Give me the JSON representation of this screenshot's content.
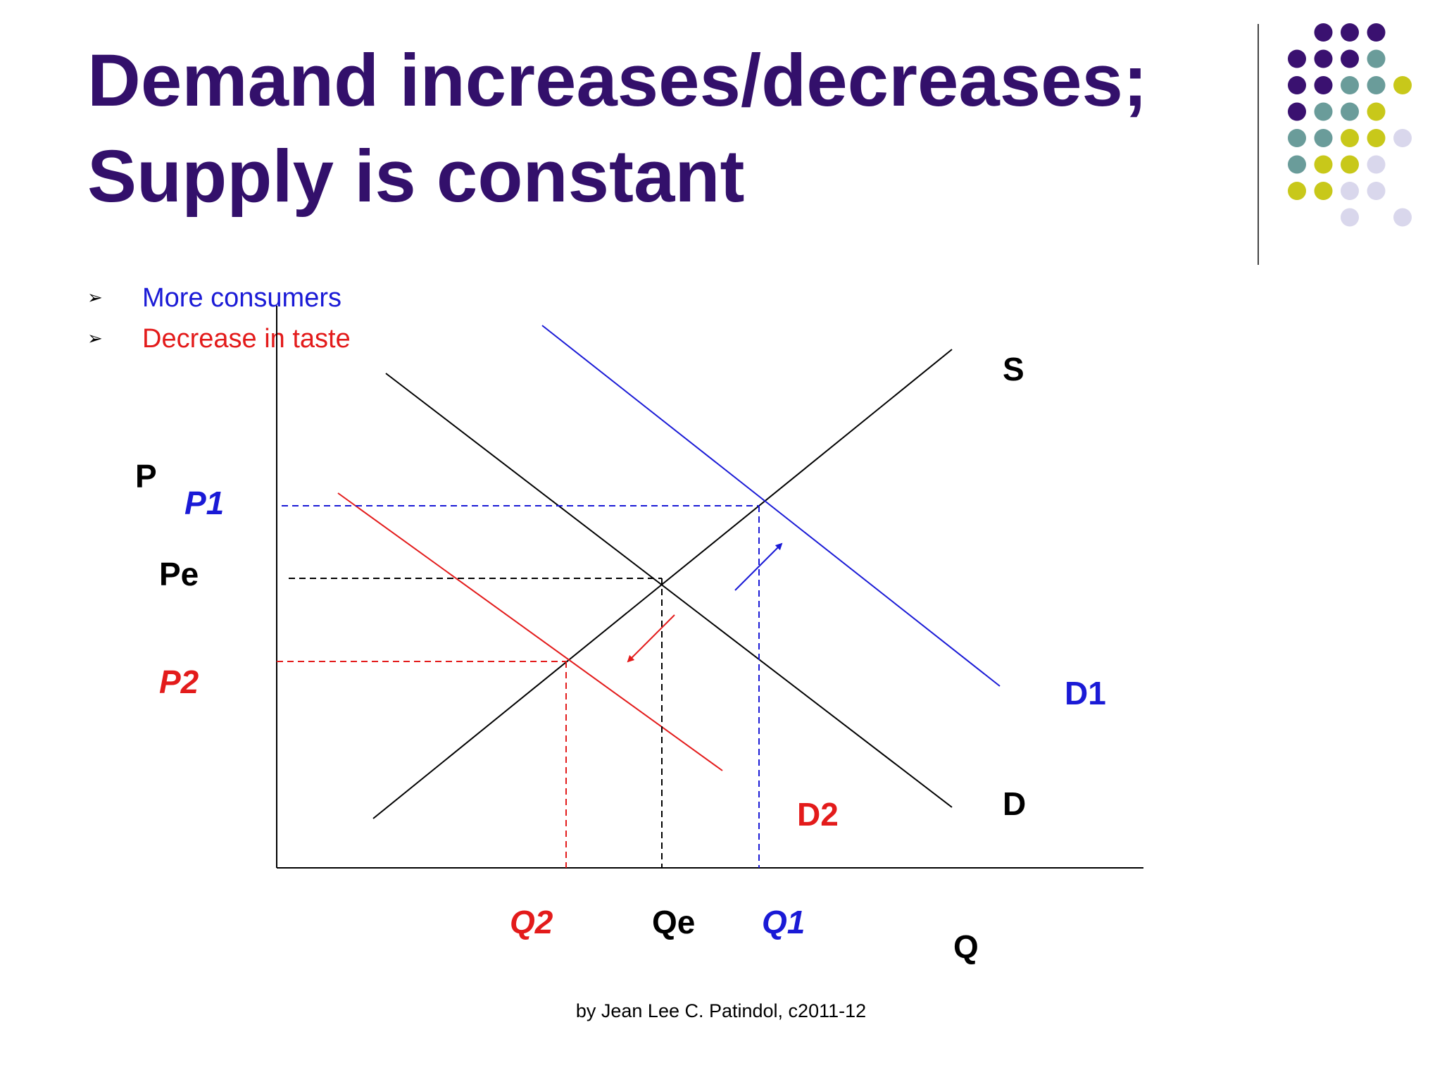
{
  "slide": {
    "title_line1": "Demand increases/decreases;",
    "title_line2": "Supply is constant",
    "bullets": [
      {
        "text": "More consumers",
        "color": "#1a1ad6"
      },
      {
        "text": "Decrease in taste",
        "color": "#e31b1b"
      }
    ],
    "bullet_marker": "➢",
    "footer": "by Jean Lee C. Patindol, c2011-12"
  },
  "colors": {
    "title": "#33106b",
    "blue": "#1a1ad6",
    "red": "#e31b1b",
    "black": "#000000",
    "dot_purple": "#3a1170",
    "dot_teal": "#6a9c9a",
    "dot_olive": "#c8c81a",
    "dot_lavender": "#d9d7ec"
  },
  "diagram": {
    "axis_labels": {
      "price": "P",
      "quantity": "Q"
    },
    "curve_labels": {
      "supply": "S",
      "demand": "D",
      "demand_up": "D1",
      "demand_down": "D2"
    },
    "price_labels": {
      "p1": "P1",
      "pe": "Pe",
      "p2": "P2"
    },
    "quantity_labels": {
      "q2": "Q2",
      "qe": "Qe",
      "q1": "Q1"
    }
  }
}
